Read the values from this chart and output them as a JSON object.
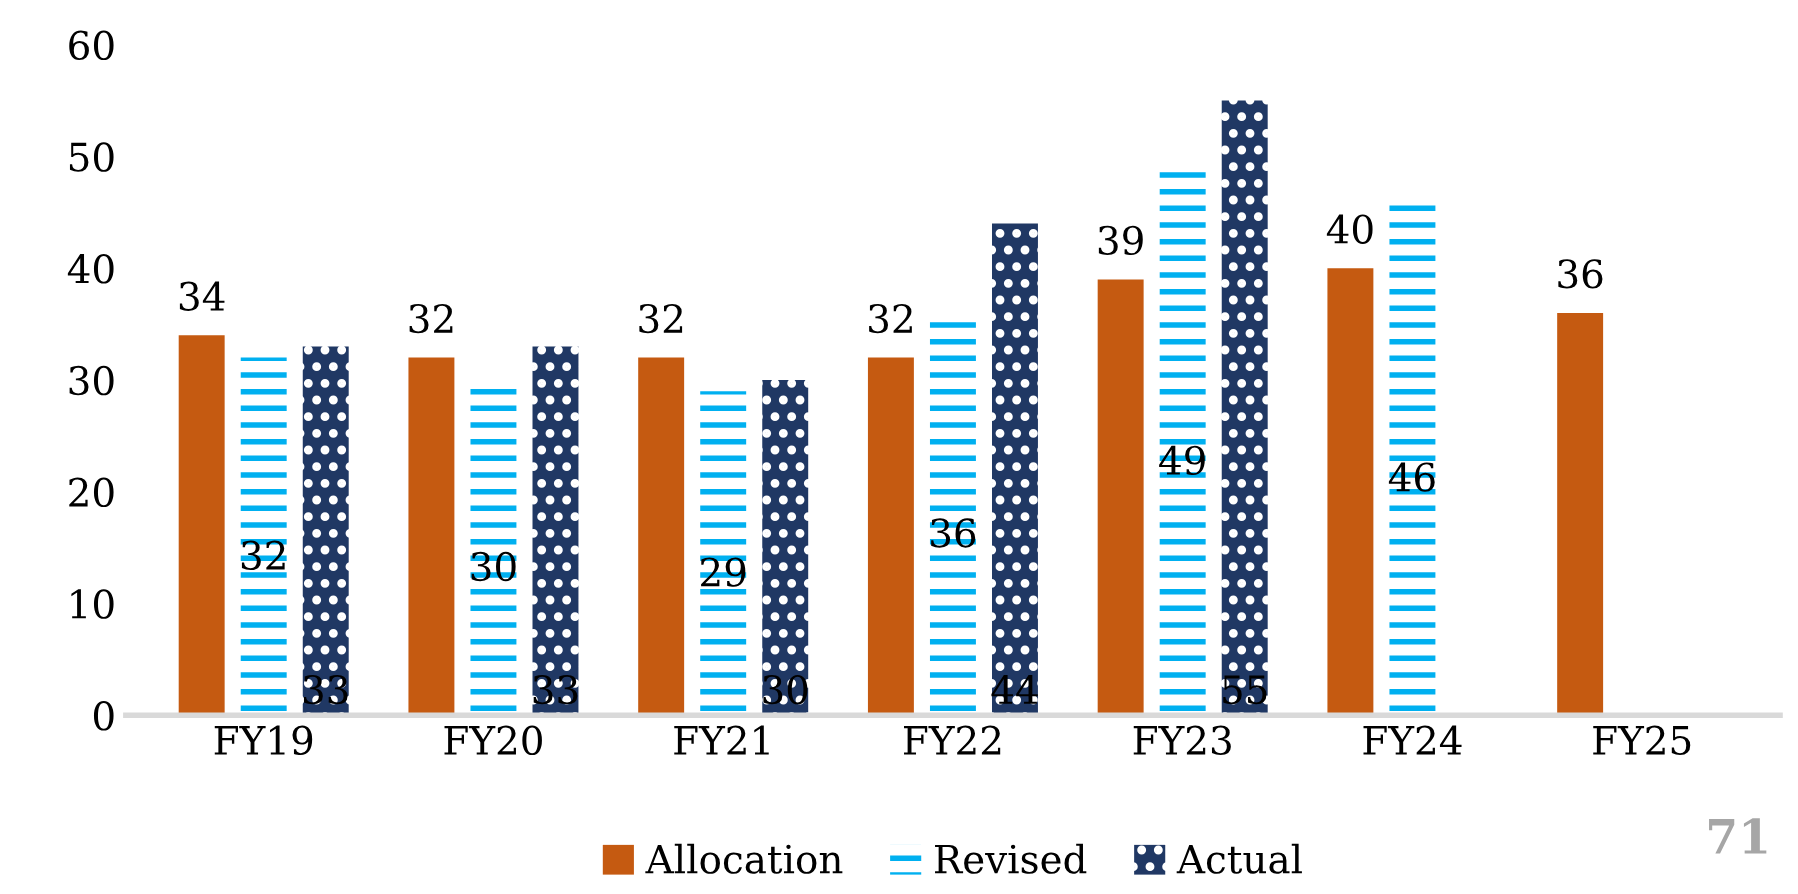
{
  "chart_data": {
    "type": "bar",
    "categories": [
      "FY19",
      "FY20",
      "FY21",
      "FY22",
      "FY23",
      "FY24",
      "FY25"
    ],
    "series": [
      {
        "name": "Allocation",
        "color": "#c55a11",
        "values": [
          34,
          32,
          32,
          32,
          39,
          40,
          36
        ]
      },
      {
        "name": "Revised",
        "color": "#00b0f0",
        "values": [
          32,
          30,
          29,
          36,
          49,
          46,
          null
        ]
      },
      {
        "name": "Actual",
        "color": "#203864",
        "values": [
          33,
          33,
          30,
          44,
          55,
          null,
          null
        ]
      }
    ],
    "ylim": [
      0,
      60
    ],
    "yticks": [
      0,
      10,
      20,
      30,
      40,
      50,
      60
    ],
    "grid": false,
    "legend": "bottom",
    "data_labels": true,
    "annotations": [
      "71"
    ]
  }
}
